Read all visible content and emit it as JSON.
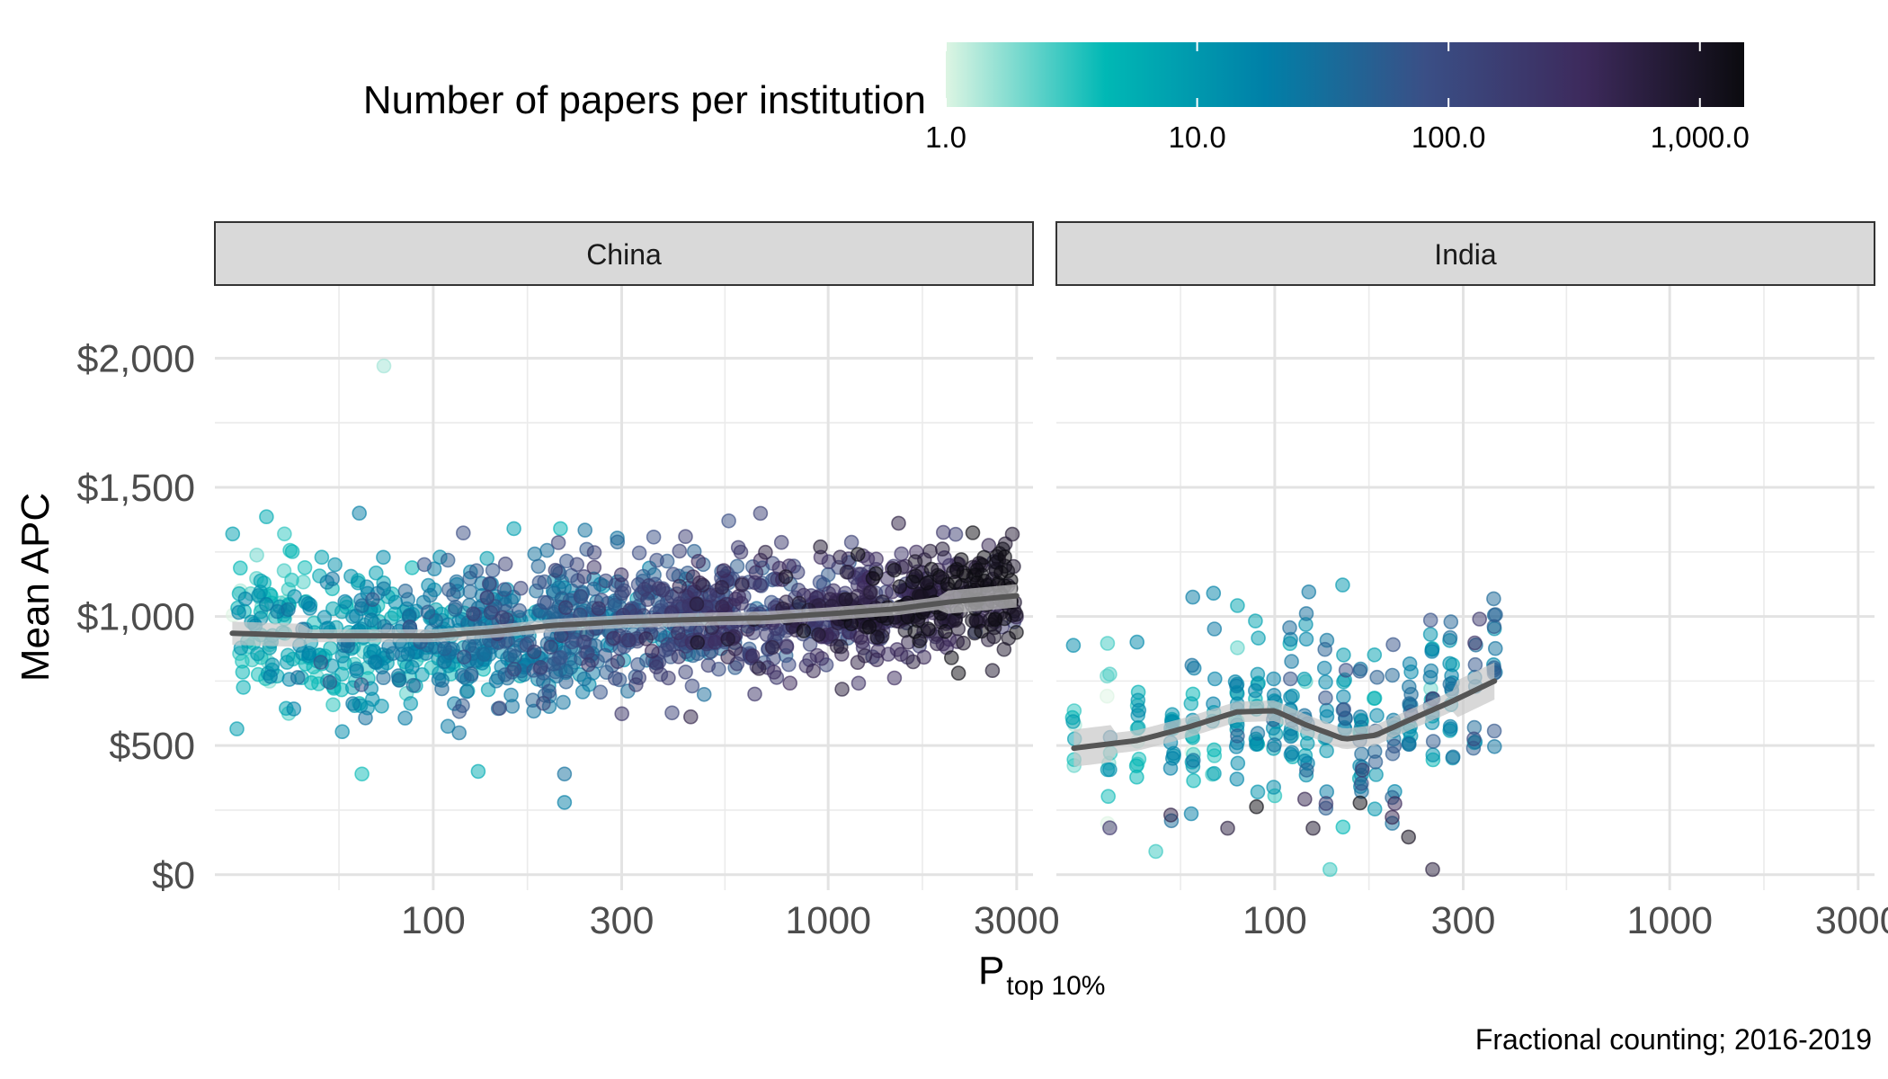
{
  "chart_data": {
    "type": "scatter",
    "title": "",
    "ylabel": "Mean APC",
    "xlabel_main": "P",
    "xlabel_sub": "top 10%",
    "caption": "Fractional counting; 2016-2019",
    "x_scale": "log",
    "xlim": [
      28,
      3300
    ],
    "x_ticks": [
      100,
      300,
      1000,
      3000
    ],
    "x_tick_labels": [
      "100",
      "300",
      "1000",
      "3000"
    ],
    "ylim": [
      -60,
      2280
    ],
    "y_ticks": [
      0,
      500,
      1000,
      1500,
      2000
    ],
    "y_tick_labels": [
      "$0",
      "$500",
      "$1,000",
      "$1,500",
      "$2,000"
    ],
    "grid": true,
    "legend": {
      "title": "Number of papers per institution",
      "position": "top",
      "scale": "log",
      "range": [
        1,
        1500
      ],
      "ticks": [
        1,
        10,
        100,
        1000
      ],
      "tick_labels": [
        "1.0",
        "10.0",
        "100.0",
        "1,000.0"
      ],
      "colors": [
        "#ddf5e3",
        "#00b8b5",
        "#0080a8",
        "#3a4f86",
        "#3d2a5c",
        "#0b0b0f"
      ]
    },
    "point_alpha": 0.5,
    "smooth_color": "#555555",
    "ribbon_color": "#c8c8c8",
    "facets": [
      {
        "label": "China",
        "n_points": 1500,
        "x_range": [
          31,
          3000
        ],
        "smooth": [
          [
            31,
            935
          ],
          [
            50,
            925
          ],
          [
            100,
            925
          ],
          [
            150,
            945
          ],
          [
            200,
            965
          ],
          [
            300,
            980
          ],
          [
            500,
            990
          ],
          [
            700,
            995
          ],
          [
            1000,
            1010
          ],
          [
            1500,
            1030
          ],
          [
            2000,
            1055
          ],
          [
            3000,
            1080
          ]
        ],
        "ribbon_halfwidth": 25,
        "highlights": [
          {
            "x": 75,
            "apc": 1970,
            "papers": 1.5
          },
          {
            "x": 65,
            "apc": 1400,
            "papers": 20
          },
          {
            "x": 160,
            "apc": 1340,
            "papers": 8
          },
          {
            "x": 210,
            "apc": 1340,
            "papers": 5
          },
          {
            "x": 560,
            "apc": 1370,
            "papers": 80
          },
          {
            "x": 215,
            "apc": 280,
            "papers": 20
          },
          {
            "x": 215,
            "apc": 390,
            "papers": 30
          },
          {
            "x": 66,
            "apc": 390,
            "papers": 4
          },
          {
            "x": 130,
            "apc": 400,
            "papers": 6
          },
          {
            "x": 2450,
            "apc": 1160,
            "papers": 1300
          },
          {
            "x": 2900,
            "apc": 1140,
            "papers": 1500
          }
        ]
      },
      {
        "label": "India",
        "n_points": 300,
        "x_range": [
          31,
          360
        ],
        "smooth": [
          [
            31,
            490
          ],
          [
            45,
            520
          ],
          [
            60,
            570
          ],
          [
            80,
            630
          ],
          [
            100,
            635
          ],
          [
            120,
            580
          ],
          [
            150,
            525
          ],
          [
            180,
            540
          ],
          [
            220,
            600
          ],
          [
            280,
            670
          ],
          [
            360,
            750
          ]
        ],
        "ribbon_halfwidth": 40,
        "highlights": [
          {
            "x": 138,
            "apc": 20,
            "papers": 3
          },
          {
            "x": 50,
            "apc": 90,
            "papers": 3
          },
          {
            "x": 122,
            "apc": 1095,
            "papers": 25
          },
          {
            "x": 70,
            "apc": 1090,
            "papers": 18
          },
          {
            "x": 330,
            "apc": 990,
            "papers": 200
          },
          {
            "x": 125,
            "apc": 180,
            "papers": 800
          },
          {
            "x": 76,
            "apc": 180,
            "papers": 600
          }
        ]
      }
    ]
  }
}
